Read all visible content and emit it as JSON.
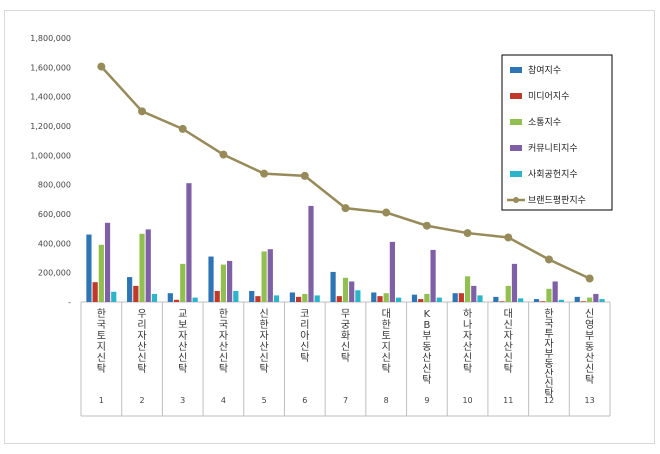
{
  "chart_data": {
    "type": "bar",
    "title": "",
    "xlabel": "",
    "ylabel": "",
    "ylim": [
      0,
      1800000
    ],
    "yticks": [
      0,
      200000,
      400000,
      600000,
      800000,
      1000000,
      1200000,
      1400000,
      1600000,
      1800000
    ],
    "ytick_labels": [
      "-",
      "200,000",
      "400,000",
      "600,000",
      "800,000",
      "1,000,000",
      "1,200,000",
      "1,400,000",
      "1,600,000",
      "1,800,000"
    ],
    "grid": false,
    "legend_position": "top-right",
    "categories": [
      "한국토지신탁",
      "우리자산신탁",
      "교보자산신탁",
      "한국자산신탁",
      "신한자산신탁",
      "코리아신탁",
      "무궁화신탁",
      "대한토지신탁",
      "KB부동산신탁",
      "하나자산신탁",
      "대신자산신탁",
      "한국투자부동산신탁",
      "신영부동산신탁"
    ],
    "indices": [
      "1",
      "2",
      "3",
      "4",
      "5",
      "6",
      "7",
      "8",
      "9",
      "10",
      "11",
      "12",
      "13"
    ],
    "series": [
      {
        "name": "참여지수",
        "color": "#2e75b6",
        "values": [
          460000,
          170000,
          60000,
          310000,
          75000,
          65000,
          205000,
          65000,
          50000,
          60000,
          35000,
          20000,
          35000
        ]
      },
      {
        "name": "미디어지수",
        "color": "#c0392b",
        "values": [
          135000,
          110000,
          15000,
          75000,
          40000,
          35000,
          40000,
          40000,
          20000,
          60000,
          5000,
          5000,
          5000
        ]
      },
      {
        "name": "소통지수",
        "color": "#92c050",
        "values": [
          390000,
          465000,
          260000,
          255000,
          345000,
          55000,
          165000,
          60000,
          55000,
          175000,
          110000,
          90000,
          30000
        ]
      },
      {
        "name": "커뮤니티지수",
        "color": "#7f5fa6",
        "values": [
          540000,
          495000,
          810000,
          280000,
          360000,
          655000,
          140000,
          410000,
          355000,
          110000,
          260000,
          140000,
          55000
        ]
      },
      {
        "name": "사회공헌지수",
        "color": "#2cb5c8",
        "values": [
          70000,
          55000,
          30000,
          75000,
          45000,
          45000,
          80000,
          30000,
          30000,
          45000,
          25000,
          15000,
          20000
        ]
      }
    ],
    "line_series": {
      "name": "브랜드평판지수",
      "color": "#978b5a",
      "values": [
        1605000,
        1300000,
        1180000,
        1005000,
        875000,
        860000,
        640000,
        610000,
        520000,
        470000,
        440000,
        290000,
        160000
      ]
    }
  }
}
